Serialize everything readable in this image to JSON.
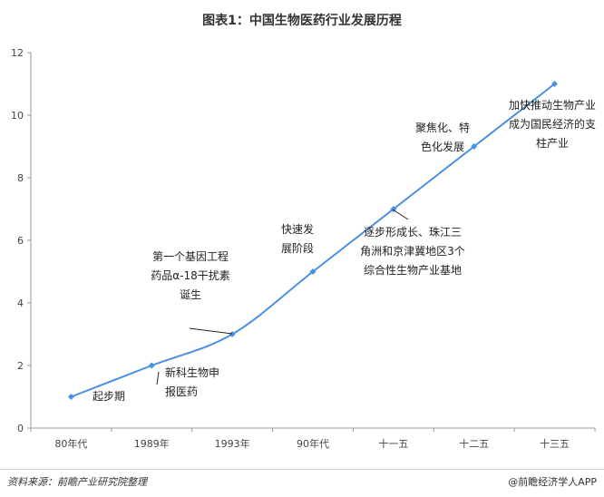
{
  "title": "图表1：中国生物医药行业发展历程",
  "footer": {
    "source": "资料来源：前瞻产业研究院整理",
    "brand": "@前瞻经济学人APP"
  },
  "chart_data": {
    "type": "line",
    "title": "图表1：中国生物医药行业发展历程",
    "xlabel": "",
    "ylabel": "",
    "categories": [
      "80年代",
      "1989年",
      "1993年",
      "90年代",
      "十一五",
      "十二五",
      "十三五"
    ],
    "x_values": [
      0,
      1,
      2,
      3,
      4,
      5,
      6
    ],
    "values": [
      1,
      2,
      3,
      5,
      7,
      9,
      11
    ],
    "ylim": [
      0,
      12
    ],
    "yticks": [
      0,
      2,
      4,
      6,
      8,
      10,
      12
    ],
    "grid": false,
    "color": "#4a90e2",
    "annotations": [
      {
        "lines": [
          "起步期"
        ],
        "x": 0,
        "y": 1
      },
      {
        "lines": [
          "新科生物申",
          "报医药"
        ],
        "x": 1,
        "y": 2
      },
      {
        "lines": [
          "第一个基因工程",
          "药品α-18干扰素",
          "诞生"
        ],
        "x": 2,
        "y": 3
      },
      {
        "lines": [
          "快速发",
          "展阶段"
        ],
        "x": 3,
        "y": 5
      },
      {
        "lines": [
          "逐步形成长、珠江三",
          "角洲和京津冀地区3个",
          "综合性生物产业基地"
        ],
        "x": 4,
        "y": 7
      },
      {
        "lines": [
          "聚焦化、特",
          "色化发展"
        ],
        "x": 5,
        "y": 9
      },
      {
        "lines": [
          "加快推动生物产业",
          "成为国民经济的支",
          "柱产业"
        ],
        "x": 6,
        "y": 11
      }
    ]
  }
}
